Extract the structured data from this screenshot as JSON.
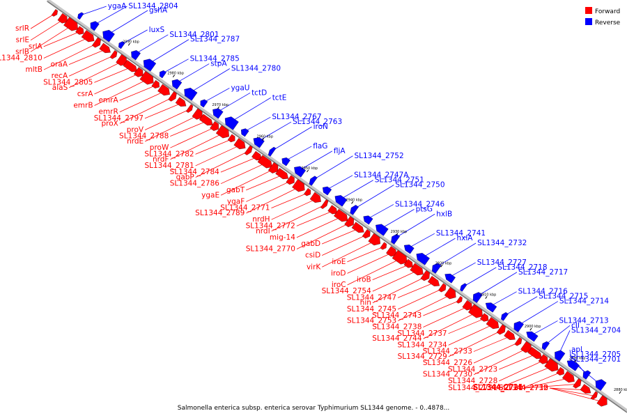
{
  "caption": "Salmonella enterica subsp. enterica serovar Typhimurium SL1344 genome. - 0..4878...",
  "legend": [
    {
      "label": "Forward",
      "color": "#ff0000"
    },
    {
      "label": "Reverse",
      "color": "#0000ff"
    }
  ],
  "colors": {
    "forward": "#ff0000",
    "reverse": "#0000ff",
    "axis": "#aaaaaa"
  },
  "ticks": [
    "2990 kbp",
    "2980 kbp",
    "2970 kbp",
    "2960 kbp",
    "2950 kbp",
    "2940 kbp",
    "2930 kbp",
    "2920 kbp",
    "2910 kbp",
    "2900 kbp",
    "2890 kbp",
    "2880 kbp"
  ],
  "forward_labels": [
    "srlR",
    "srlE",
    "srlB",
    "srlA",
    "SL1344_2810",
    "mltB",
    "oraA",
    "recA",
    "alaS",
    "SL1344_2805",
    "csrA",
    "emrB",
    "emrA",
    "emrR",
    "proX",
    "SL1344_2797",
    "proV",
    "nrdE",
    "SL1344_2788",
    "proW",
    "nrdF",
    "SL1344_2782",
    "SL1344_2781",
    "gabP",
    "SL1344_2784",
    "SL1344_2786",
    "ygaE",
    "gabT",
    "ygaF",
    "SL1344_2789",
    "SL1344_2771",
    "nrdH",
    "nrdI",
    "SL1344_2772",
    "mig-14",
    "SL1344_2770",
    "gabD",
    "csiD",
    "virK",
    "iroE",
    "iroD",
    "iroC",
    "iroB",
    "SL1344_2754",
    "hin",
    "SL1344_2747",
    "SL1344_2745",
    "SL1344_2753",
    "SL1344_2743",
    "SL1344_2738",
    "SL1344_2744",
    "SL1344_2737",
    "SL1344_2734",
    "SL1344_2729",
    "SL1344_2733",
    "SL1344_2726",
    "SL1344_2730",
    "SL1344_2723",
    "SL1344_2728",
    "SL1344_2721",
    "SL1344_2725",
    "SL1344_2720",
    "SL1344_2731",
    "SL1344_2712",
    "SL1344_2735",
    "SL1344_2710"
  ],
  "reverse_labels": [
    "ygaA",
    "SL1344_2804",
    "gshA",
    "luxS",
    "SL1344_2801",
    "SL1344_2787",
    "SL1344_2785",
    "stpA",
    "SL1344_2780",
    "ygaU",
    "tctD",
    "tctE",
    "SL1344_2767",
    "SL1344_2763",
    "iroN",
    "flaG",
    "fljA",
    "SL1344_2752",
    "SL1344_2747A",
    "SL1344_2751",
    "SL1344_2750",
    "SL1344_2746",
    "ptsG",
    "hxlB",
    "SL1344_2741",
    "hxlA",
    "SL1344_2732",
    "SL1344_2727",
    "SL1344_2718",
    "SL1344_2717",
    "SL1344_2716",
    "SL1344_2715",
    "SL1344_2714",
    "SL1344_2713",
    "cII",
    "SL1344_2704",
    "apl",
    "SL1344_2705",
    "SL1344_2701"
  ]
}
